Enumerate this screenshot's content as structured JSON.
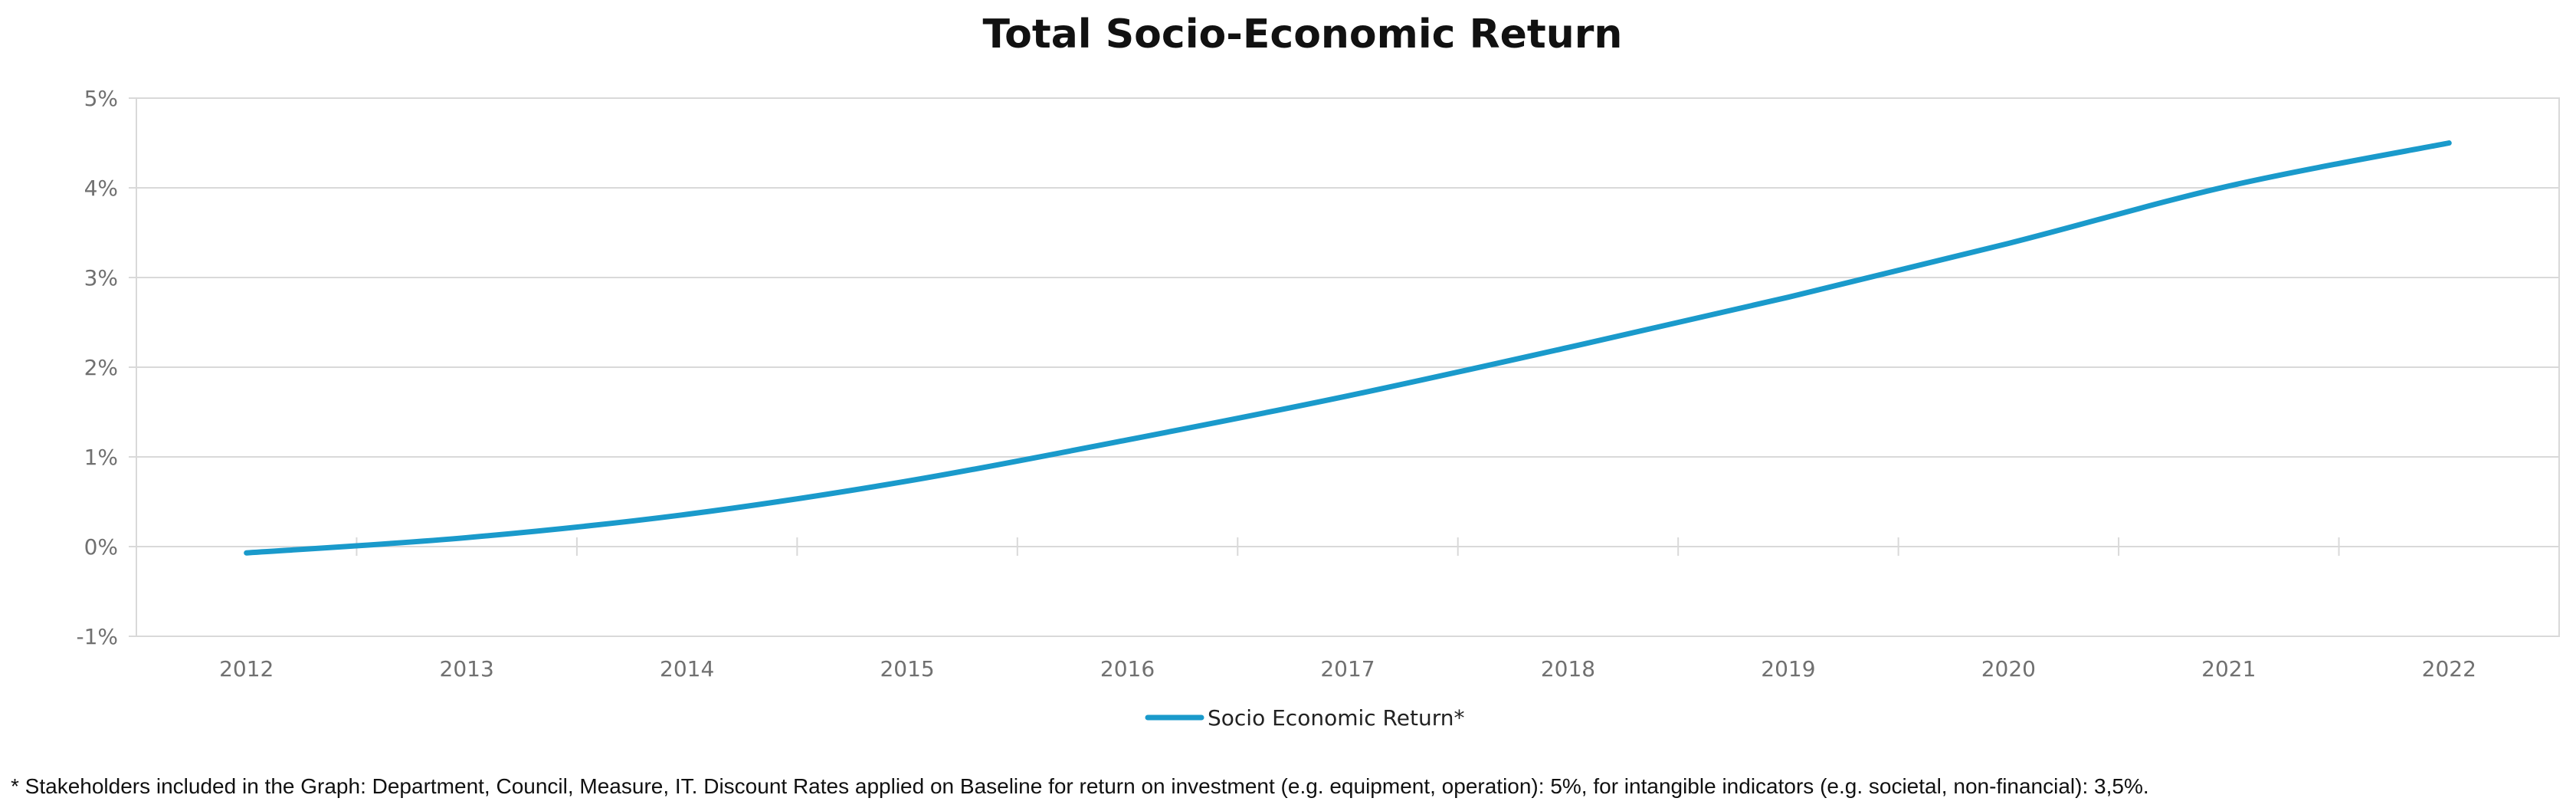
{
  "chart_data": {
    "type": "line",
    "title": "Total Socio-Economic Return",
    "xlabel": "",
    "ylabel": "",
    "categories": [
      "2012",
      "2013",
      "2014",
      "2015",
      "2016",
      "2017",
      "2018",
      "2019",
      "2020",
      "2021",
      "2022"
    ],
    "series": [
      {
        "name": "Socio Economic Return*",
        "color": "#1a9acb",
        "values": [
          -0.0007,
          0.001,
          0.0036,
          0.0073,
          0.0119,
          0.0168,
          0.0222,
          0.0278,
          0.0338,
          0.0402,
          0.045
        ]
      }
    ],
    "ylim": [
      -0.01,
      0.05
    ],
    "yticks": [
      "-1%",
      "0%",
      "1%",
      "2%",
      "3%",
      "4%",
      "5%"
    ],
    "grid": "horizontal",
    "legend": "bottom-center"
  },
  "footnote": "* Stakeholders included in the Graph: Department, Council, Measure, IT. Discount Rates applied on Baseline for return on investment (e.g. equipment, operation): 5%, for intangible indicators (e.g. societal, non-financial): 3,5%."
}
